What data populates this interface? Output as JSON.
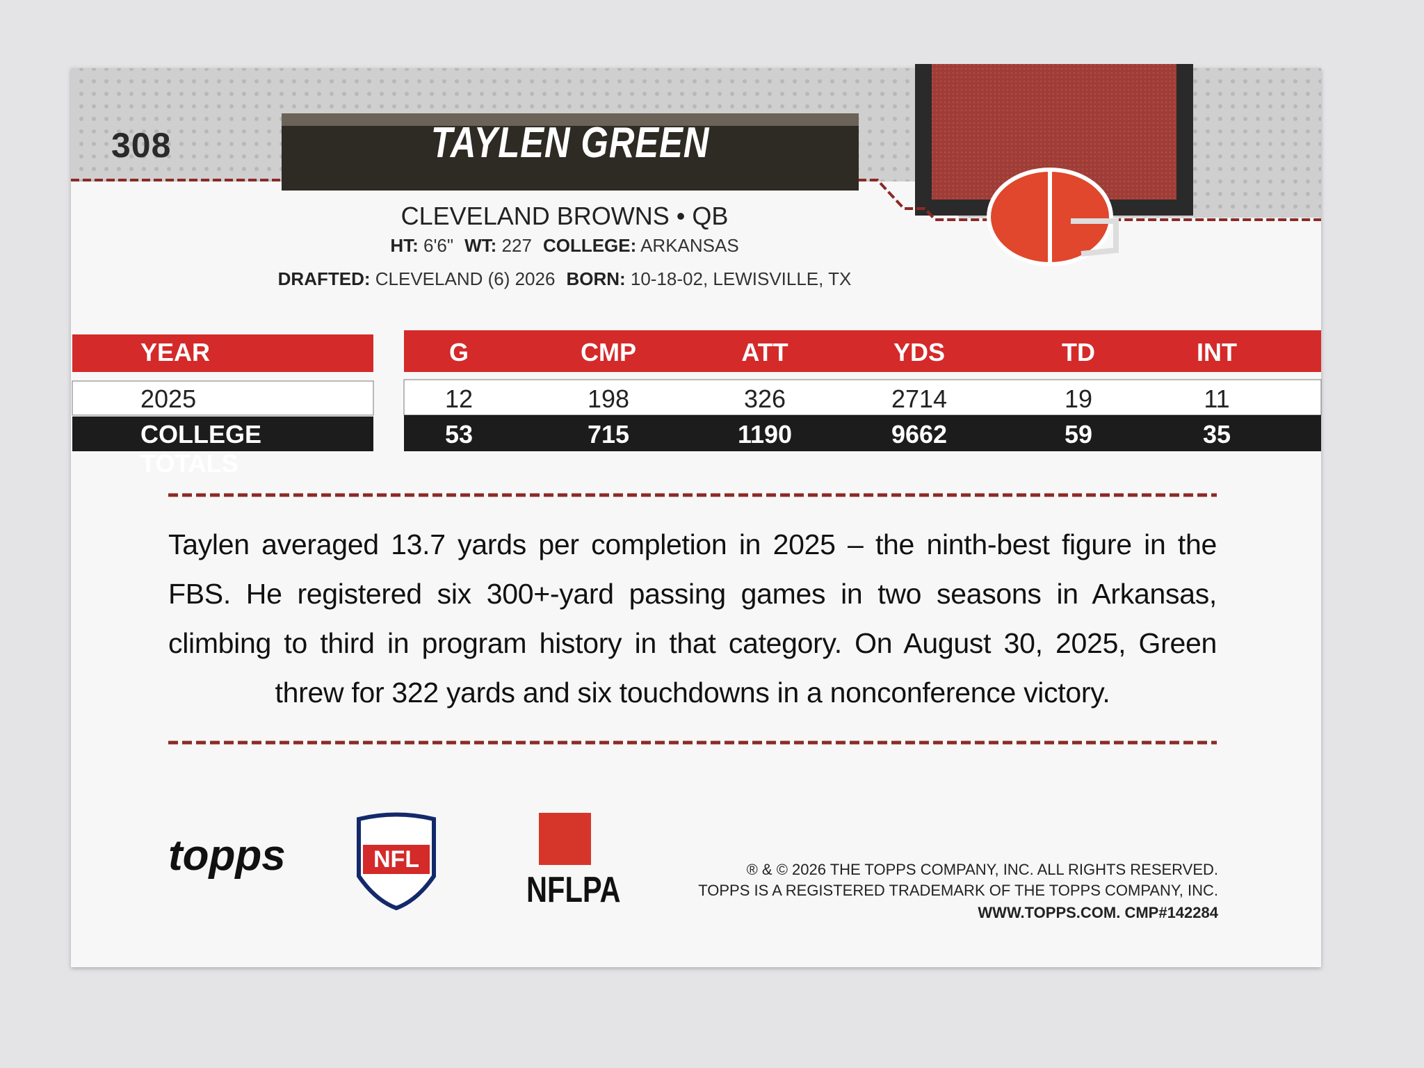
{
  "card": {
    "number": "308",
    "name": "TAYLEN GREEN",
    "team_line": "CLEVELAND BROWNS • QB",
    "bio": [
      [
        {
          "label": "HT:",
          "value": "6'6\""
        },
        {
          "label": "WT:",
          "value": "227"
        },
        {
          "label": "COLLEGE:",
          "value": "ARKANSAS"
        }
      ],
      [
        {
          "label": "DRAFTED:",
          "value": "CLEVELAND (6) 2026"
        },
        {
          "label": "BORN:",
          "value": "10-18-02, LEWISVILLE, TX"
        }
      ]
    ],
    "stats": {
      "columns": [
        "YEAR",
        "G",
        "CMP",
        "ATT",
        "YDS",
        "TD",
        "INT"
      ],
      "rows": [
        [
          "2025",
          "12",
          "198",
          "326",
          "2714",
          "19",
          "11"
        ],
        [
          "COLLEGE TOTALS",
          "53",
          "715",
          "1190",
          "9662",
          "59",
          "35"
        ]
      ]
    },
    "blurb": "Taylen averaged 13.7 yards per completion in 2025 – the ninth-best figure in the FBS. He registered six 300+-yard passing games in two seasons in Arkansas, climbing to third in program history in that category. On August 30, 2025, Green threw for 322 yards and six touchdowns in a nonconference victory.",
    "logos": {
      "topps": "topps",
      "nfl": "NFL",
      "nflpa": "NFLPA"
    },
    "legal": [
      "® & © 2026 THE TOPPS COMPANY, INC. ALL RIGHTS RESERVED.",
      "TOPPS IS A REGISTERED TRADEMARK OF THE TOPPS COMPANY, INC.",
      "WWW.TOPPS.COM. CMP#142284"
    ]
  }
}
